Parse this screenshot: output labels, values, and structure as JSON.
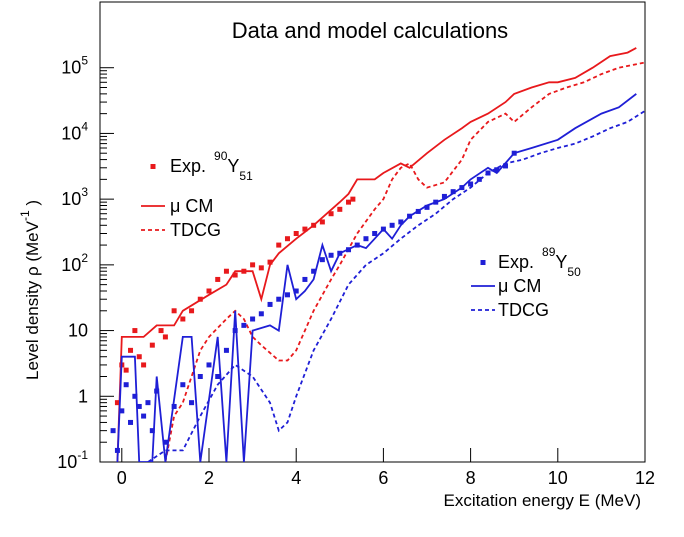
{
  "chart_data": {
    "type": "line",
    "title": "Data and model calculations",
    "xlabel": "Excitation energy E (MeV)",
    "ylabel": {
      "text": "Level density  ρ (MeV",
      "sup": "-1",
      "end": " )"
    },
    "xlim": [
      -0.5,
      12
    ],
    "xticks": [
      0,
      2,
      4,
      6,
      8,
      10,
      12
    ],
    "ylim": [
      0.1,
      1000000
    ],
    "log_y": true,
    "yticks": [
      {
        "value": 0.1,
        "label": "10",
        "sup": "-1"
      },
      1,
      10,
      {
        "value": 100,
        "label": "10",
        "sup": "2"
      },
      {
        "value": 1000,
        "label": "10",
        "sup": "3"
      },
      {
        "value": 10000,
        "label": "10",
        "sup": "4"
      },
      {
        "value": 100000,
        "label": "10",
        "sup": "5"
      }
    ],
    "series": [
      {
        "name": "Exp.",
        "isotope": {
          "mass": "90",
          "symbol": "Y",
          "n": "51"
        },
        "legend": "left",
        "style": "markers",
        "color": "#e8191c",
        "x": [
          -0.1,
          0.0,
          0.1,
          0.2,
          0.3,
          0.4,
          0.5,
          0.7,
          0.9,
          1.0,
          1.2,
          1.4,
          1.6,
          1.8,
          2.0,
          2.2,
          2.4,
          2.6,
          2.8,
          3.0,
          3.2,
          3.4,
          3.6,
          3.8,
          4.0,
          4.2,
          4.4,
          4.6,
          4.8,
          5.0,
          5.2,
          5.3
        ],
        "values": [
          0.8,
          3,
          2.5,
          5,
          10,
          4,
          3,
          6,
          10,
          8,
          20,
          15,
          20,
          30,
          40,
          60,
          80,
          70,
          80,
          100,
          90,
          110,
          200,
          250,
          300,
          350,
          400,
          450,
          600,
          700,
          900,
          1000
        ]
      },
      {
        "name": "μ CM",
        "legend": "left",
        "style": "solid",
        "color": "#e8191c",
        "x": [
          -0.1,
          0.0,
          0.5,
          0.8,
          1.2,
          1.4,
          2.0,
          2.4,
          2.6,
          2.8,
          3.0,
          3.2,
          3.4,
          3.6,
          4.0,
          4.4,
          5.0,
          5.2,
          5.4,
          5.8,
          6.0,
          6.4,
          6.6,
          7.0,
          7.4,
          7.8,
          8.0,
          8.4,
          8.8,
          9.0,
          9.4,
          9.8,
          10.0,
          10.4,
          10.8,
          11.2,
          11.6,
          11.8
        ],
        "values": [
          0.1,
          8,
          8,
          12,
          12,
          20,
          35,
          50,
          80,
          80,
          80,
          30,
          100,
          150,
          250,
          400,
          900,
          1200,
          2000,
          2000,
          2500,
          3500,
          3000,
          5000,
          8000,
          12000,
          15000,
          20000,
          30000,
          40000,
          50000,
          60000,
          60000,
          70000,
          100000,
          150000,
          170000,
          200000
        ]
      },
      {
        "name": "TDCG",
        "legend": "left",
        "style": "dashed",
        "color": "#e8191c",
        "x": [
          1.0,
          1.2,
          1.4,
          1.6,
          1.8,
          2.0,
          2.4,
          2.6,
          2.8,
          3.0,
          3.2,
          3.6,
          3.8,
          4.0,
          4.4,
          4.8,
          5.0,
          5.4,
          5.8,
          6.0,
          6.2,
          6.4,
          6.6,
          6.8,
          7.0,
          7.4,
          7.8,
          8.0,
          8.4,
          8.8,
          9.0,
          9.4,
          9.8,
          10.2,
          10.6,
          11.0,
          11.4,
          12.0
        ],
        "values": [
          0.1,
          0.5,
          0.8,
          2,
          5,
          8,
          15,
          20,
          15,
          8,
          6,
          3.5,
          3.5,
          5,
          20,
          60,
          100,
          300,
          700,
          1000,
          2000,
          3000,
          3500,
          2000,
          1500,
          1800,
          4000,
          8000,
          15000,
          20000,
          15000,
          25000,
          40000,
          50000,
          60000,
          80000,
          100000,
          120000
        ]
      },
      {
        "name": "Exp.",
        "isotope": {
          "mass": "89",
          "symbol": "Y",
          "n": "50"
        },
        "legend": "right",
        "style": "markers",
        "color": "#1f1fd6",
        "x": [
          -0.2,
          -0.1,
          0.0,
          0.1,
          0.2,
          0.3,
          0.4,
          0.5,
          0.6,
          0.7,
          0.8,
          1.0,
          1.2,
          1.4,
          1.6,
          1.8,
          2.0,
          2.2,
          2.4,
          2.6,
          2.8,
          3.0,
          3.2,
          3.4,
          3.6,
          3.8,
          4.0,
          4.2,
          4.4,
          4.6,
          4.8,
          5.0,
          5.2,
          5.4,
          5.6,
          5.8,
          6.0,
          6.2,
          6.4,
          6.6,
          6.8,
          7.0,
          7.2,
          7.4,
          7.6,
          7.8,
          8.0,
          8.2,
          8.4,
          8.6,
          8.8,
          9.0
        ],
        "values": [
          0.3,
          0.15,
          0.6,
          1.5,
          0.4,
          1,
          0.7,
          0.5,
          0.8,
          0.3,
          1.2,
          0.2,
          0.7,
          1.5,
          0.8,
          2,
          3,
          2,
          5,
          10,
          12,
          15,
          18,
          25,
          30,
          35,
          40,
          60,
          80,
          120,
          140,
          150,
          170,
          200,
          250,
          300,
          350,
          400,
          450,
          550,
          650,
          750,
          900,
          1100,
          1300,
          1500,
          1700,
          2000,
          2500,
          2800,
          3200,
          5000
        ]
      },
      {
        "name": "μ CM",
        "legend": "right",
        "style": "solid",
        "color": "#1f1fd6",
        "x": [
          -0.1,
          0.0,
          0.3,
          0.4,
          0.7,
          0.8,
          1.0,
          1.4,
          1.6,
          1.8,
          2.2,
          2.4,
          2.6,
          2.8,
          3.0,
          3.4,
          3.6,
          3.8,
          4.0,
          4.2,
          4.4,
          4.6,
          4.8,
          5.0,
          5.4,
          5.6,
          5.8,
          6.0,
          6.2,
          6.4,
          6.6,
          7.0,
          7.4,
          7.8,
          8.0,
          8.4,
          8.6,
          9.0,
          9.4,
          10.0,
          10.4,
          11.0,
          11.4,
          11.8
        ],
        "values": [
          0.1,
          4,
          4,
          0.1,
          0.1,
          2,
          0.1,
          8,
          8,
          0.1,
          8,
          0.1,
          20,
          0.1,
          10,
          12,
          10,
          100,
          30,
          40,
          60,
          200,
          80,
          150,
          200,
          180,
          250,
          350,
          250,
          400,
          550,
          800,
          1000,
          1500,
          2000,
          3000,
          2500,
          5000,
          6000,
          8000,
          12000,
          20000,
          25000,
          40000
        ]
      },
      {
        "name": "TDCG",
        "legend": "right",
        "style": "dashed",
        "color": "#1f1fd6",
        "x": [
          0.6,
          1.0,
          1.4,
          1.8,
          2.2,
          2.6,
          3.0,
          3.4,
          3.6,
          3.8,
          4.0,
          4.4,
          4.8,
          5.2,
          5.6,
          6.0,
          6.4,
          6.8,
          7.2,
          7.6,
          8.0,
          8.4,
          8.8,
          9.2,
          9.6,
          10.0,
          10.4,
          10.8,
          11.2,
          11.6,
          12.0
        ],
        "values": [
          0.1,
          0.15,
          0.15,
          0.5,
          1.5,
          3,
          2,
          0.8,
          0.3,
          0.4,
          1,
          5,
          15,
          50,
          100,
          150,
          250,
          400,
          600,
          1000,
          1500,
          2500,
          3500,
          4000,
          5000,
          6000,
          7000,
          9000,
          12000,
          15000,
          22000
        ]
      }
    ]
  }
}
